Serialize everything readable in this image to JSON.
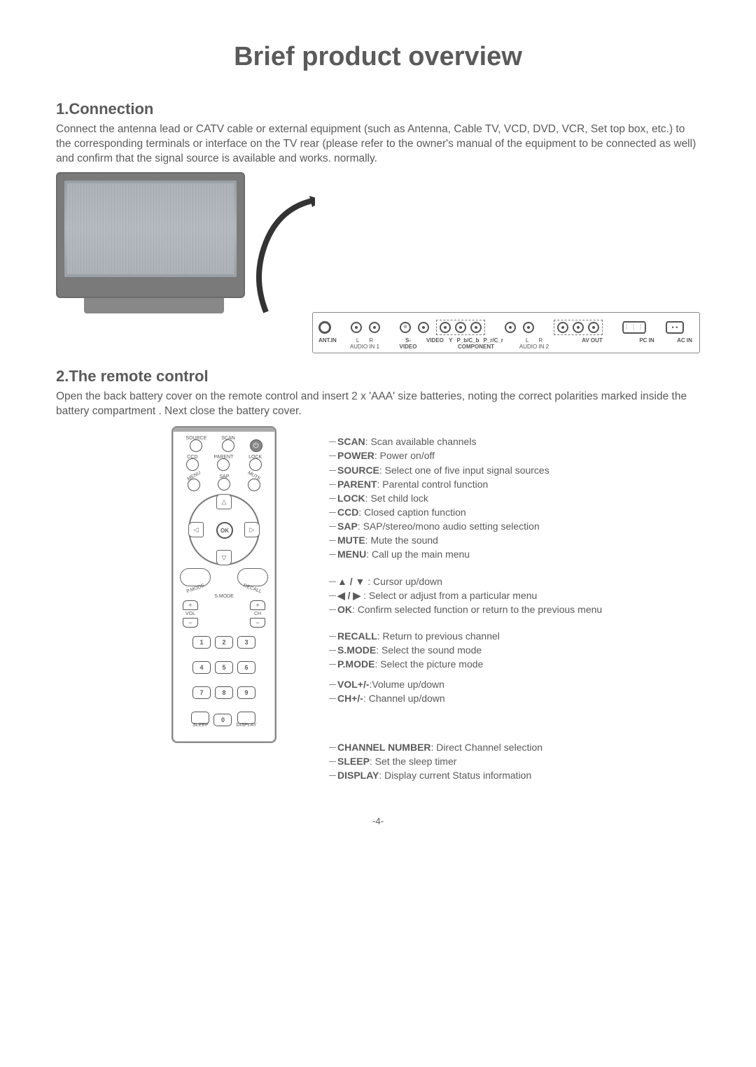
{
  "page_number": "-4-",
  "title": "Brief product overview",
  "section1": {
    "heading": "1.Connection",
    "body": "Connect the antenna lead or CATV cable or external equipment (such as Antenna, Cable TV, VCD, DVD, VCR, Set top box, etc.) to the corresponding terminals or interface on the TV rear (please refer to the owner's manual of the equipment to be connected as well) and confirm that the signal source is available and works. normally."
  },
  "rear_panel": {
    "ports": [
      {
        "label": "ANT.IN",
        "type": "big"
      },
      {
        "label": "L",
        "sub": "AUDIO IN 1",
        "type": "dot"
      },
      {
        "label": "R",
        "type": "dot"
      },
      {
        "label": "S-VIDEO",
        "type": "svideo"
      },
      {
        "label": "VIDEO",
        "type": "dot"
      },
      {
        "group": "component",
        "label": "Y",
        "type": "dot"
      },
      {
        "group": "component",
        "label": "P_b/C_b",
        "type": "dot"
      },
      {
        "group": "component",
        "label": "P_r/C_r",
        "type": "dot"
      },
      {
        "label": "L",
        "sub": "AUDIO IN 2",
        "type": "dot"
      },
      {
        "label": "R",
        "type": "dot"
      },
      {
        "group": "avout",
        "label": "",
        "type": "dot"
      },
      {
        "group": "avout",
        "label": "",
        "type": "dot"
      },
      {
        "group": "avout",
        "label": "",
        "type": "dot"
      },
      {
        "label": "PC IN",
        "type": "vga"
      },
      {
        "label": "AC IN",
        "type": "acin"
      }
    ],
    "group_labels": {
      "component": "COMPONENT",
      "avout": "AV OUT"
    },
    "labels": {
      "ant": "ANT.IN",
      "l": "L",
      "r": "R",
      "audio1": "AUDIO IN 1",
      "svideo": "S-VIDEO",
      "video": "VIDEO",
      "y": "Y",
      "pb": "P_b/C_b",
      "pr": "P_r/C_r",
      "component": "COMPONENT",
      "audio2": "AUDIO IN 2",
      "avout": "AV OUT",
      "pcin": "PC IN",
      "acin": "AC IN"
    }
  },
  "section2": {
    "heading": "2.The remote control",
    "body": "Open the back battery cover on the remote control and insert 2 x 'AAA' size batteries, noting the correct polarities  marked inside the battery compartment . Next close the battery cover."
  },
  "remote": {
    "buttons": {
      "source": "SOURCE",
      "scan": "SCAN",
      "power": "⏻",
      "ccd": "CCD",
      "parent": "PARENT",
      "lock": "LOCK",
      "menu": "MENU",
      "sap": "SAP",
      "mute": "MUTE",
      "ok": "OK",
      "pmode": "P.MODE",
      "smode": "S.MODE",
      "recall": "RECALL",
      "vol": "VOL",
      "ch": "CH",
      "plus": "+",
      "minus": "−",
      "sleep": "SLEEP",
      "display": "DISPLAY",
      "numbers": [
        "1",
        "2",
        "3",
        "4",
        "5",
        "6",
        "7",
        "8",
        "9",
        "0"
      ]
    }
  },
  "descriptions": {
    "group1": [
      {
        "k": "SCAN",
        "v": ": Scan available channels"
      },
      {
        "k": "POWER",
        "v": ": Power on/off"
      },
      {
        "k": "SOURCE",
        "v": ": Select one of five input signal sources"
      },
      {
        "k": "PARENT",
        "v": ": Parental control function"
      },
      {
        "k": "LOCK",
        "v": ": Set child lock"
      },
      {
        "k": "CCD",
        "v": ": Closed caption function"
      },
      {
        "k": "SAP",
        "v": ": SAP/stereo/mono audio setting selection"
      },
      {
        "k": "MUTE",
        "v": ": Mute the sound"
      },
      {
        "k": "MENU",
        "v": ": Call up the main menu"
      }
    ],
    "group2": [
      {
        "k": "▲ / ▼ ",
        "v": ":  Cursor up/down"
      },
      {
        "k": "◀ / ▶ ",
        "v": ":  Select or adjust from a particular menu"
      },
      {
        "k": "OK",
        "v": ":  Confirm selected function or return to the previous menu"
      }
    ],
    "group3": [
      {
        "k": "RECALL",
        "v": ":  Return to previous channel"
      },
      {
        "k": "S.MODE",
        "v": ": Select the sound mode"
      },
      {
        "k": "P.MODE",
        "v": ": Select the picture mode"
      }
    ],
    "group4": [
      {
        "k": "VOL+/-",
        "v": ":Volume up/down"
      },
      {
        "k": "CH+/-",
        "v": ": Channel up/down"
      }
    ],
    "group5": [
      {
        "k": "CHANNEL NUMBER",
        "v": ": Direct Channel selection"
      },
      {
        "k": "SLEEP",
        "v": ": Set the sleep timer"
      },
      {
        "k": "DISPLAY",
        "v": ": Display current Status information"
      }
    ]
  }
}
